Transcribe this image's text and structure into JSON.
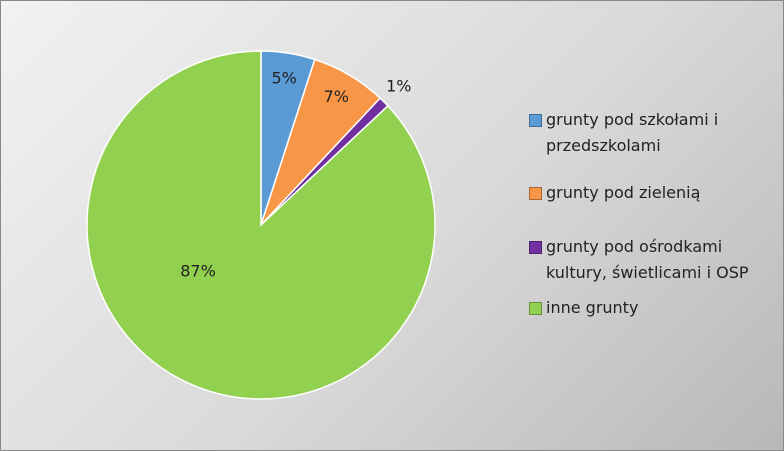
{
  "chart_data": {
    "type": "pie",
    "categories": [
      "grunty pod szkołami i przedszkolami",
      "grunty pod zielenią",
      "grunty pod ośrodkami kultury, świetlicami i OSP",
      "inne grunty"
    ],
    "values": [
      5,
      7,
      1,
      87
    ],
    "value_labels": [
      "5%",
      "7%",
      "1%",
      "87%"
    ],
    "colors": [
      "#5b9bd5",
      "#f79646",
      "#7030a0",
      "#92d050"
    ],
    "legend": "right"
  }
}
